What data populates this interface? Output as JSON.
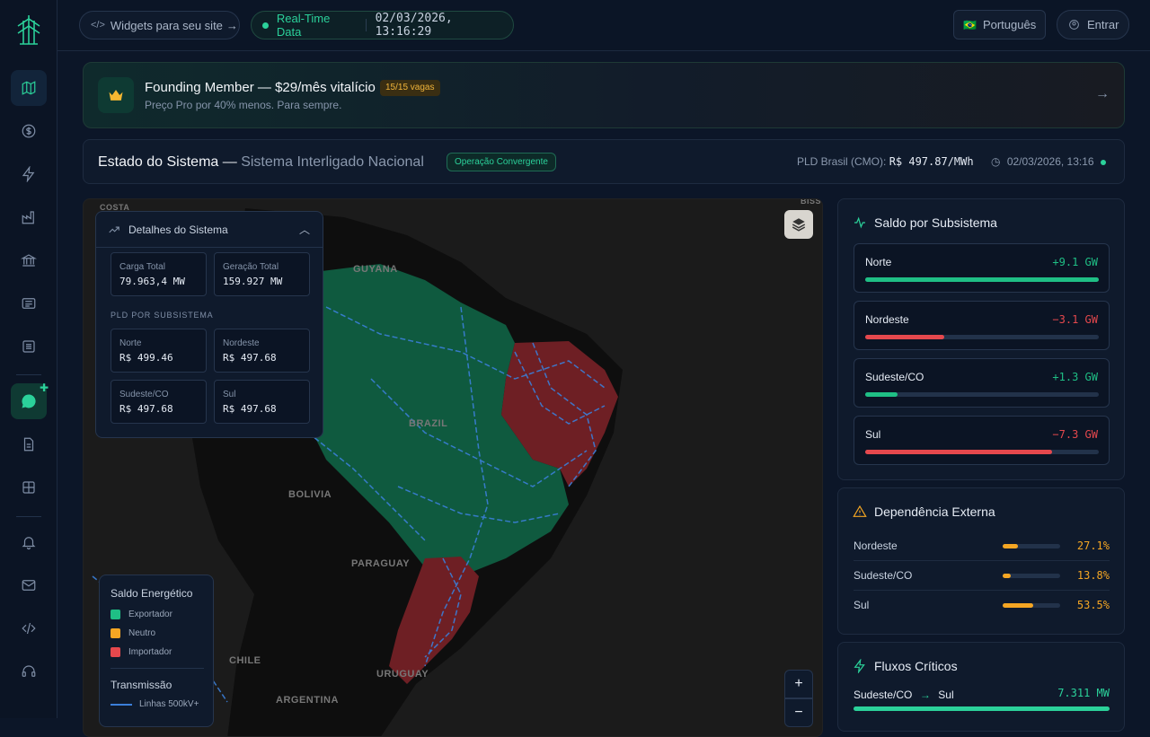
{
  "header": {
    "widgets_label": "Widgets para seu site",
    "realtime_label": "Real-Time Data",
    "realtime_time": "02/03/2026, 13:16:29",
    "language_flag": "🇧🇷",
    "language_label": "Português",
    "login_label": "Entrar"
  },
  "sidebar": {
    "items": [
      "map-icon",
      "dollar-icon",
      "bolt-icon",
      "factory-icon",
      "bank-icon",
      "news-icon",
      "list-icon",
      "chat-icon",
      "document-icon",
      "grid-icon",
      "bell-icon",
      "mail-icon",
      "code-icon",
      "headset-icon"
    ]
  },
  "banner": {
    "title": "Founding Member — $29/mês vitalício",
    "badge": "15/15 vagas",
    "subtitle": "Preço Pro por 40% menos. Para sempre."
  },
  "status": {
    "title_main": "Estado do Sistema —",
    "title_sub": "Sistema Interligado Nacional",
    "badge": "Operação Convergente",
    "pld_label": "PLD Brasil (CMO):",
    "pld_value": "R$ 497.87/MWh",
    "timestamp": "02/03/2026, 13:16"
  },
  "details": {
    "title": "Detalhes do Sistema",
    "carga_label": "Carga Total",
    "carga_value": "79.963,4 MW",
    "geracao_label": "Geração Total",
    "geracao_value": "159.927 MW",
    "pld_section": "PLD POR SUBSISTEMA",
    "pld": [
      {
        "label": "Norte",
        "value": "R$ 499.46"
      },
      {
        "label": "Nordeste",
        "value": "R$ 497.68"
      },
      {
        "label": "Sudeste/CO",
        "value": "R$ 497.68"
      },
      {
        "label": "Sul",
        "value": "R$ 497.68"
      }
    ]
  },
  "map": {
    "labels": {
      "guyana": "GUYANA",
      "brazil": "BRAZIL",
      "bolivia": "BOLIVIA",
      "paraguay": "PARAGUAY",
      "chile": "CHILE",
      "uruguay": "URUGUAY",
      "argentina": "ARGENTINA",
      "costa": "COSTA",
      "biss": "BISS"
    },
    "colors": {
      "exporter": "#0f5a3f",
      "importer": "#6e1f24",
      "lines": "#3b7fd9"
    }
  },
  "legend": {
    "title": "Saldo Energético",
    "exportador": "Exportador",
    "neutro": "Neutro",
    "importador": "Importador",
    "transmissao": "Transmissão",
    "linhas": "Linhas 500kV+",
    "colors": {
      "exportador": "#1fbf85",
      "neutro": "#f5a623",
      "importador": "#e5484d"
    }
  },
  "saldo": {
    "title": "Saldo por Subsistema",
    "items": [
      {
        "name": "Norte",
        "value": "+9.1 GW",
        "fill": 1.0,
        "color": "#1fbf85"
      },
      {
        "name": "Nordeste",
        "value": "−3.1 GW",
        "fill": 0.34,
        "color": "#e5484d"
      },
      {
        "name": "Sudeste/CO",
        "value": "+1.3 GW",
        "fill": 0.14,
        "color": "#1fbf85"
      },
      {
        "name": "Sul",
        "value": "−7.3 GW",
        "fill": 0.8,
        "color": "#e5484d"
      }
    ]
  },
  "dependencia": {
    "title": "Dependência Externa",
    "items": [
      {
        "name": "Nordeste",
        "pct": "27.1%",
        "fill": 0.271
      },
      {
        "name": "Sudeste/CO",
        "pct": "13.8%",
        "fill": 0.138
      },
      {
        "name": "Sul",
        "pct": "53.5%",
        "fill": 0.535
      }
    ]
  },
  "fluxos": {
    "title": "Fluxos Críticos",
    "from": "Sudeste/CO",
    "to": "Sul",
    "value": "7.311 MW"
  }
}
